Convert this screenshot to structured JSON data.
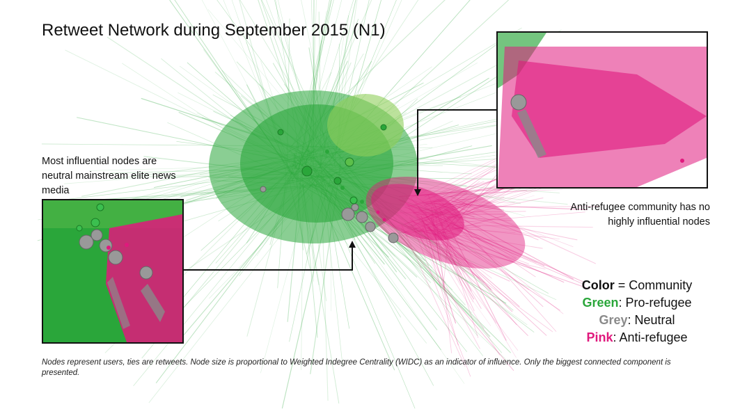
{
  "title": "Retweet Network during September 2015 (N1)",
  "annotations": {
    "left": "Most influential nodes are neutral mainstream elite news media",
    "right": "Anti-refugee community has no highly influential nodes"
  },
  "legend": {
    "color_label": "Color",
    "color_desc": " = Community",
    "items": [
      {
        "label": "Green",
        "desc": ": Pro-refugee",
        "color": "#2aa63a"
      },
      {
        "label": "Grey",
        "desc": ": Neutral",
        "color": "#8a8a8a"
      },
      {
        "label": "Pink",
        "desc": ": Anti-refugee",
        "color": "#e0197d"
      }
    ]
  },
  "footnote": "Nodes represent users, ties are retweets. Node size is proportional to Weighted Indegree Centrality (WIDC) as an indicator of influence. Only the biggest connected component is presented.",
  "colors": {
    "pro_refugee": "#2aa63a",
    "pro_refugee_light": "#8fcf5a",
    "neutral": "#8a8a8a",
    "anti_refugee": "#e0197d"
  }
}
